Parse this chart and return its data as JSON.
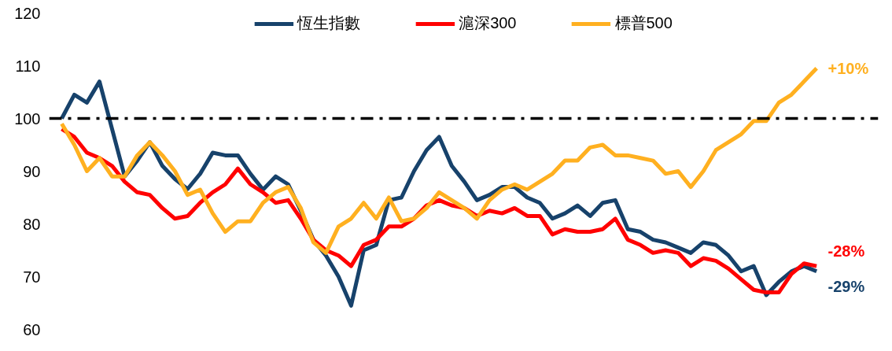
{
  "chart_data": {
    "type": "line",
    "categories": [
      null,
      null,
      null,
      null,
      null,
      null,
      null,
      null,
      null,
      null,
      null,
      null,
      null,
      null,
      null,
      null,
      null,
      null,
      null,
      null,
      null,
      null,
      null,
      null,
      null,
      null,
      null,
      null,
      null,
      null,
      null,
      null,
      null,
      null,
      null,
      null,
      null,
      null,
      null,
      null,
      null,
      null,
      null,
      null,
      null,
      null,
      null,
      null,
      null,
      null,
      null,
      null,
      null,
      null,
      null,
      null,
      null,
      null,
      null,
      null,
      null
    ],
    "series": [
      {
        "name": "恆生指數",
        "color": "#17426b",
        "values": [
          100,
          104.5,
          103,
          107,
          98,
          89,
          92,
          95.5,
          91,
          88.5,
          86.6,
          89.5,
          93.5,
          93,
          93,
          89.5,
          86.5,
          89,
          87.5,
          82.5,
          77,
          74,
          70,
          64.5,
          75,
          76,
          84.5,
          85,
          90,
          94,
          96.5,
          91,
          88,
          84.5,
          85.5,
          87,
          87,
          85,
          84,
          81,
          82,
          83.5,
          81.5,
          84,
          84.5,
          79,
          78.5,
          77,
          76.5,
          75.5,
          74.5,
          76.5,
          76,
          74,
          71,
          72,
          66.5,
          69,
          71,
          72,
          71
        ]
      },
      {
        "name": "滬深300",
        "color": "#ff0000",
        "values": [
          98,
          96.5,
          93.5,
          92.5,
          91,
          88,
          86,
          85.5,
          83,
          81,
          81.5,
          84,
          86,
          87.5,
          90.5,
          87.5,
          86,
          84,
          84.5,
          81,
          77,
          75,
          74,
          72,
          76,
          77,
          79.5,
          79.5,
          81,
          83.5,
          84.5,
          83.5,
          83,
          81.5,
          82.5,
          82,
          83,
          81.5,
          81.5,
          78,
          79,
          78.5,
          78.5,
          79,
          81,
          77,
          76,
          74.5,
          75,
          74.5,
          72,
          73.5,
          73,
          71.5,
          69.5,
          67.5,
          67,
          67,
          70.5,
          72.5,
          72
        ]
      },
      {
        "name": "標普500",
        "color": "#ffb020",
        "values": [
          99,
          95,
          90,
          92.5,
          89,
          89,
          93,
          95.5,
          93,
          90,
          85.5,
          86.5,
          82,
          78.5,
          80.5,
          80.5,
          84,
          86,
          87,
          83,
          76.5,
          74.5,
          79.5,
          81,
          84,
          81,
          85,
          80.5,
          81,
          83,
          86,
          84.5,
          83,
          81,
          84.5,
          86.5,
          87.5,
          86.5,
          88,
          89.5,
          92,
          92,
          94.5,
          95,
          93,
          93,
          92.5,
          92,
          89.5,
          90,
          87,
          90,
          94,
          95.5,
          97,
          99.5,
          99.5,
          103,
          104.5,
          107,
          109.5
        ]
      }
    ],
    "ylim": [
      60,
      120
    ],
    "yticks": [
      60,
      70,
      80,
      90,
      100,
      110,
      120
    ],
    "tick_labels": "y",
    "grid": false,
    "legend": "top",
    "ref_lines": [
      {
        "axis": "y",
        "value": 100,
        "color": "#000000",
        "line_style": "dashdot"
      }
    ],
    "annotations": [
      "+10%",
      "-28%",
      "-29%"
    ]
  }
}
